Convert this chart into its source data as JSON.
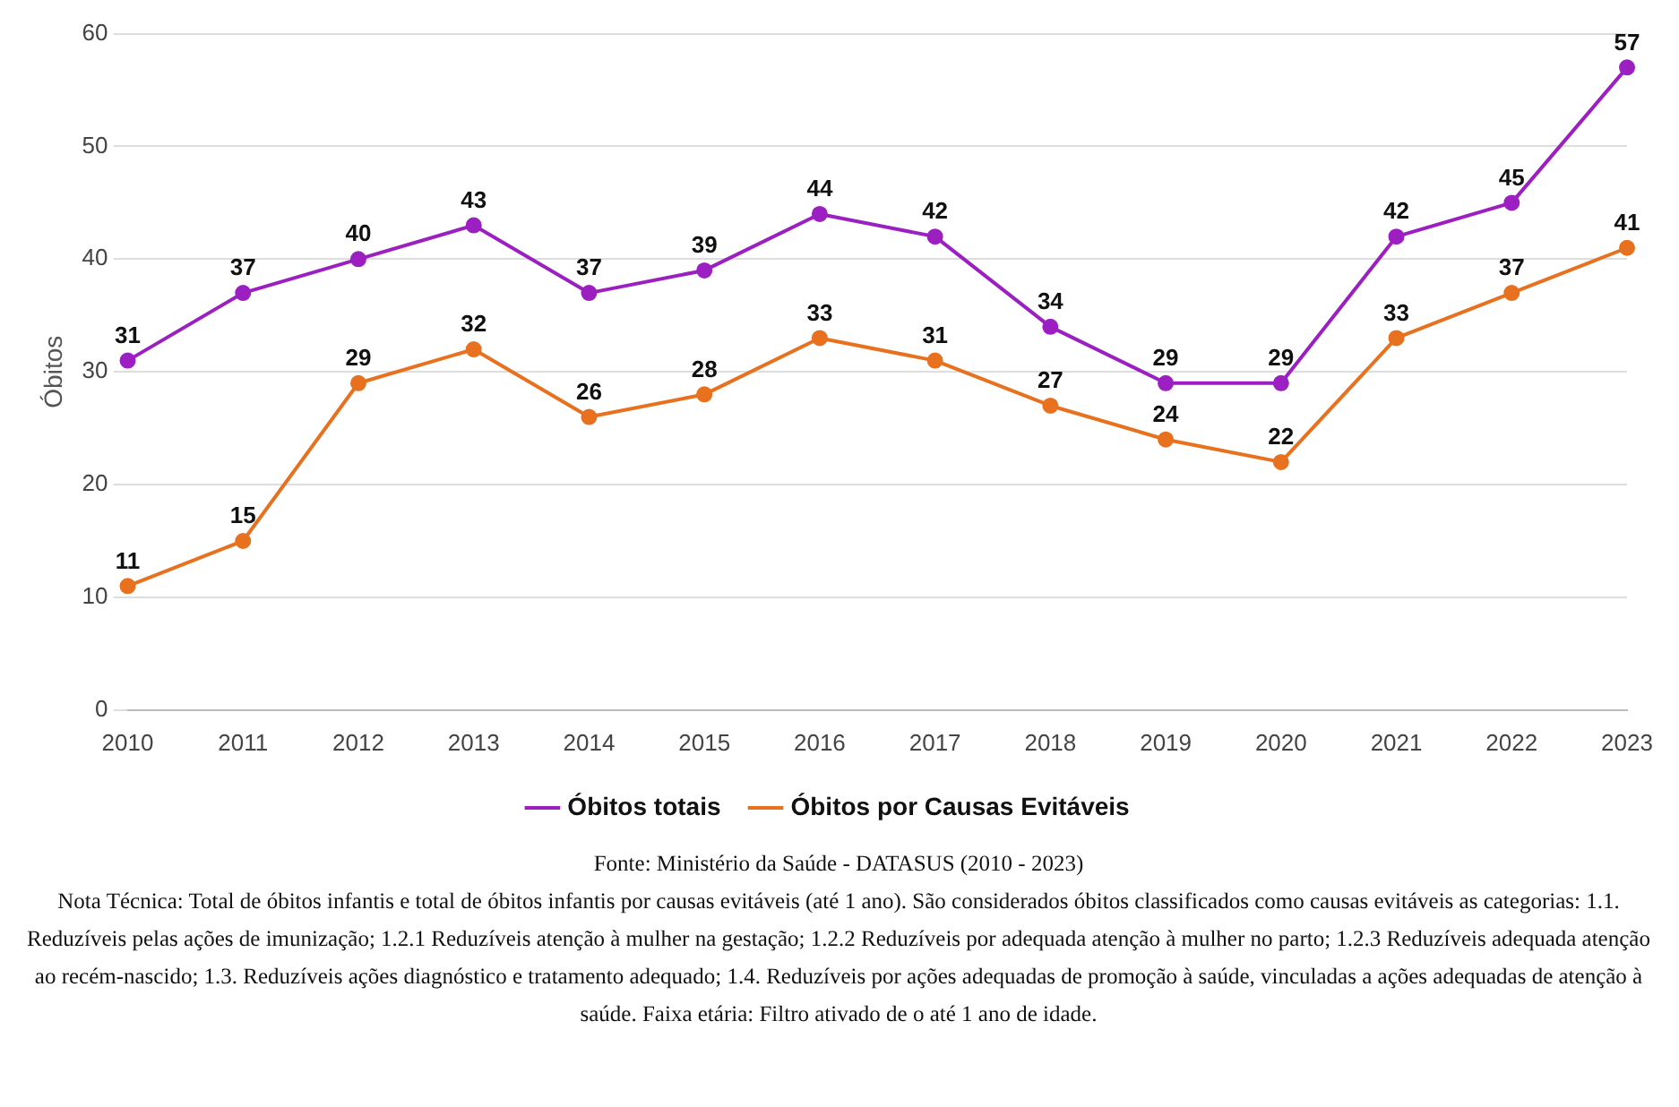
{
  "chart_data": {
    "type": "line",
    "ylabel": "Óbitos",
    "categories": [
      "2010",
      "2011",
      "2012",
      "2013",
      "2014",
      "2015",
      "2016",
      "2017",
      "2018",
      "2019",
      "2020",
      "2021",
      "2022",
      "2023"
    ],
    "series": [
      {
        "name": "Óbitos totais",
        "color": "#9b1fc1",
        "values": [
          31,
          37,
          40,
          43,
          37,
          39,
          44,
          42,
          34,
          29,
          29,
          42,
          45,
          57
        ]
      },
      {
        "name": "Óbitos por Causas Evitáveis",
        "color": "#e8711f",
        "values": [
          11,
          15,
          29,
          32,
          26,
          28,
          33,
          31,
          27,
          24,
          22,
          33,
          37,
          41
        ]
      }
    ],
    "ylim": [
      0,
      60
    ],
    "yticks": [
      0,
      10,
      20,
      30,
      40,
      50,
      60
    ],
    "grid": "y",
    "legend": "bottom",
    "marker": "circle",
    "line_style": "solid",
    "data_labels": true,
    "annotations": [
      "Fonte: Ministério da Saúde - DATASUS (2010 - 2023)",
      "Nota Técnica: Total de óbitos infantis e total de óbitos infantis por causas evitáveis (até 1 ano). São considerados óbitos classificados como causas evitáveis as categorias: 1.1. Reduzíveis pelas ações de imunização; 1.2.1 Reduzíveis atenção à mulher na gestação; 1.2.2 Reduzíveis por adequada atenção à mulher no parto; 1.2.3 Reduzíveis adequada atenção ao recém-nascido; 1.3. Reduzíveis ações diagnóstico e tratamento adequado; 1.4. Reduzíveis por ações adequadas de promoção à saúde, vinculadas a ações adequadas de atenção à saúde. Faixa etária: Filtro ativado de o até 1 ano de idade."
    ]
  }
}
